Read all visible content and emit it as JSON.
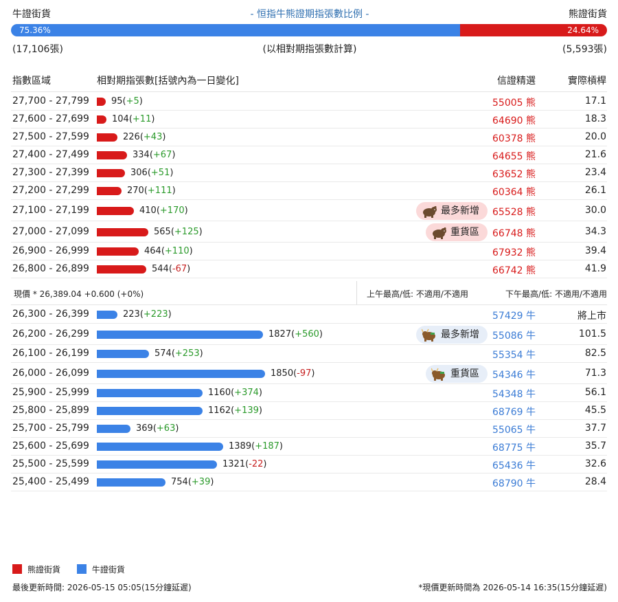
{
  "header": {
    "bull_title": "牛證街貨",
    "center_title": "- 恒指牛熊證期指張數比例 -",
    "bear_title": "熊證街貨"
  },
  "ratio": {
    "bull_pct": "75.36%",
    "bear_pct": "24.64%",
    "bull_fraction": 0.7536,
    "bull_count": "(17,106張)",
    "note": "(以相對期指張數計算)",
    "bear_count": "(5,593張)"
  },
  "columns": {
    "range": "指數區域",
    "count": "相對期指張數[括號內為一日變化]",
    "pick": "信證精選",
    "leverage": "實際槓桿"
  },
  "colors": {
    "bear": "#d81a1a",
    "bull": "#3b82e6"
  },
  "bar_max": 1850,
  "bear_rows": [
    {
      "range": "27,700 - 27,799",
      "count": 95,
      "count_label": "95",
      "change": "+5",
      "code": "55005",
      "type": "熊",
      "leverage": "17.1"
    },
    {
      "range": "27,600 - 27,699",
      "count": 104,
      "count_label": "104",
      "change": "+11",
      "code": "64690",
      "type": "熊",
      "leverage": "18.3"
    },
    {
      "range": "27,500 - 27,599",
      "count": 226,
      "count_label": "226",
      "change": "+43",
      "code": "60378",
      "type": "熊",
      "leverage": "20.0"
    },
    {
      "range": "27,400 - 27,499",
      "count": 334,
      "count_label": "334",
      "change": "+67",
      "code": "64655",
      "type": "熊",
      "leverage": "21.6"
    },
    {
      "range": "27,300 - 27,399",
      "count": 306,
      "count_label": "306",
      "change": "+51",
      "code": "63652",
      "type": "熊",
      "leverage": "23.4"
    },
    {
      "range": "27,200 - 27,299",
      "count": 270,
      "count_label": "270",
      "change": "+111",
      "code": "60364",
      "type": "熊",
      "leverage": "26.1"
    },
    {
      "range": "27,100 - 27,199",
      "count": 410,
      "count_label": "410",
      "change": "+170",
      "code": "65528",
      "type": "熊",
      "leverage": "30.0",
      "tag": "最多新增"
    },
    {
      "range": "27,000 - 27,099",
      "count": 565,
      "count_label": "565",
      "change": "+125",
      "code": "66748",
      "type": "熊",
      "leverage": "34.3",
      "tag": "重貨區"
    },
    {
      "range": "26,900 - 26,999",
      "count": 464,
      "count_label": "464",
      "change": "+110",
      "code": "67932",
      "type": "熊",
      "leverage": "39.4"
    },
    {
      "range": "26,800 - 26,899",
      "count": 544,
      "count_label": "544",
      "change": "-67",
      "code": "66742",
      "type": "熊",
      "leverage": "41.9"
    }
  ],
  "price": {
    "current": "現價 *  26,389.04 +0.600 (+0%)",
    "morning": "上午最高/低: 不適用/不適用",
    "afternoon": "下午最高/低: 不適用/不適用"
  },
  "bull_rows": [
    {
      "range": "26,300 - 26,399",
      "count": 223,
      "count_label": "223",
      "change": "+223",
      "code": "57429",
      "type": "牛",
      "leverage": "將上市"
    },
    {
      "range": "26,200 - 26,299",
      "count": 1827,
      "count_label": "1827",
      "change": "+560",
      "code": "55086",
      "type": "牛",
      "leverage": "101.5",
      "tag": "最多新增"
    },
    {
      "range": "26,100 - 26,199",
      "count": 574,
      "count_label": "574",
      "change": "+253",
      "code": "55354",
      "type": "牛",
      "leverage": "82.5"
    },
    {
      "range": "26,000 - 26,099",
      "count": 1850,
      "count_label": "1850",
      "change": "-97",
      "code": "54346",
      "type": "牛",
      "leverage": "71.3",
      "tag": "重貨區"
    },
    {
      "range": "25,900 - 25,999",
      "count": 1160,
      "count_label": "1160",
      "change": "+374",
      "code": "54348",
      "type": "牛",
      "leverage": "56.1"
    },
    {
      "range": "25,800 - 25,899",
      "count": 1162,
      "count_label": "1162",
      "change": "+139",
      "code": "68769",
      "type": "牛",
      "leverage": "45.5"
    },
    {
      "range": "25,700 - 25,799",
      "count": 369,
      "count_label": "369",
      "change": "+63",
      "code": "55065",
      "type": "牛",
      "leverage": "37.7"
    },
    {
      "range": "25,600 - 25,699",
      "count": 1389,
      "count_label": "1389",
      "change": "+187",
      "code": "68775",
      "type": "牛",
      "leverage": "35.7"
    },
    {
      "range": "25,500 - 25,599",
      "count": 1321,
      "count_label": "1321",
      "change": "-22",
      "code": "65436",
      "type": "牛",
      "leverage": "32.6"
    },
    {
      "range": "25,400 - 25,499",
      "count": 754,
      "count_label": "754",
      "change": "+39",
      "code": "68790",
      "type": "牛",
      "leverage": "28.4"
    }
  ],
  "legend": {
    "bear": "熊證街貨",
    "bull": "牛證街貨"
  },
  "footer": {
    "updated": "最後更新時間: 2026-05-15 05:05(15分鐘延遲)",
    "price_updated": "*現價更新時間為 2026-05-14 16:35(15分鐘延遲)"
  }
}
